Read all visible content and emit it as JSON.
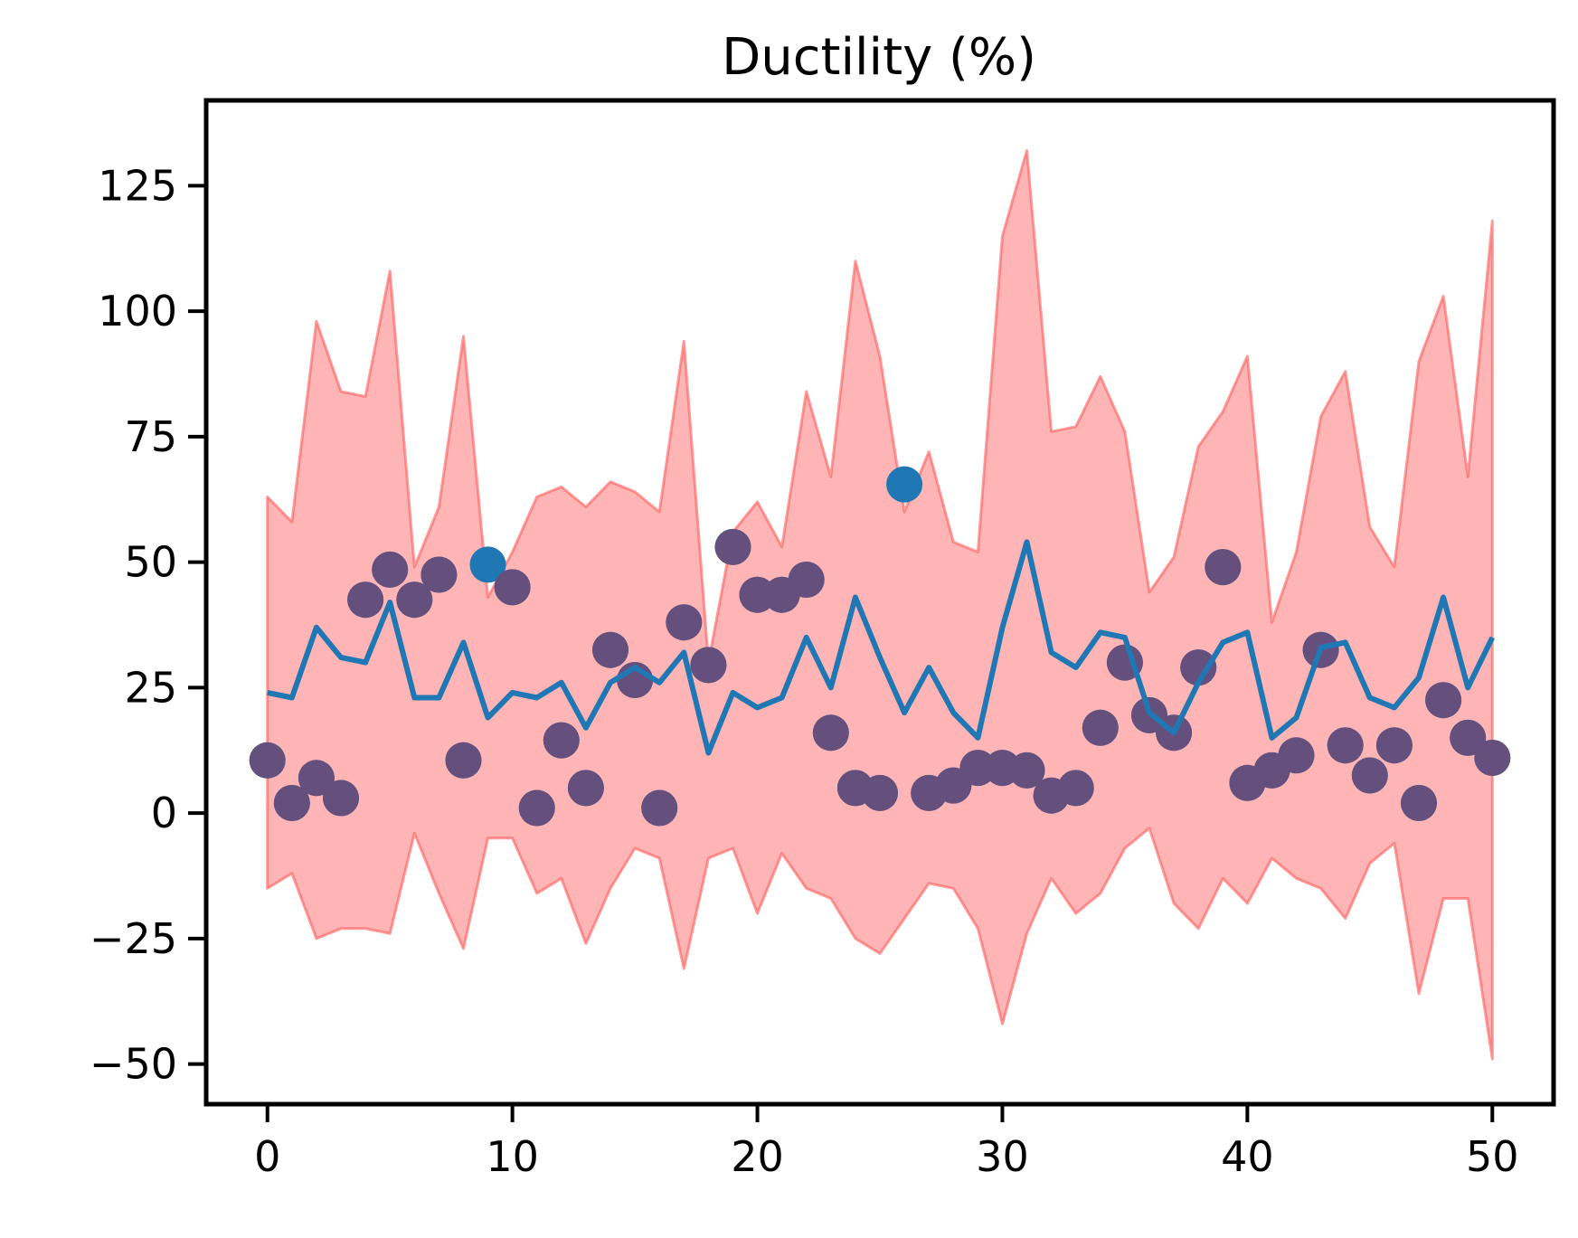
{
  "chart_data": {
    "type": "line",
    "title": "Ductility (%)",
    "xlabel": "",
    "ylabel": "",
    "xlim": [
      -2.5,
      52.5
    ],
    "ylim": [
      -58,
      142
    ],
    "xticks": [
      0,
      10,
      20,
      30,
      40,
      50
    ],
    "yticks": [
      -50,
      -25,
      0,
      25,
      50,
      75,
      100,
      125
    ],
    "xtick_labels": [
      "0",
      "10",
      "20",
      "30",
      "40",
      "50"
    ],
    "ytick_labels": [
      "−50",
      "−25",
      "0",
      "25",
      "50",
      "75",
      "100",
      "125"
    ],
    "grid": false,
    "legend": "none",
    "colors": {
      "band": "#ff5a5a",
      "prediction": "#1f77b4",
      "observed": "#1f77b4",
      "overlap": "#654f7c"
    },
    "x": [
      0,
      1,
      2,
      3,
      4,
      5,
      6,
      7,
      8,
      9,
      10,
      11,
      12,
      13,
      14,
      15,
      16,
      17,
      18,
      19,
      20,
      21,
      22,
      23,
      24,
      25,
      26,
      27,
      28,
      29,
      30,
      31,
      32,
      33,
      34,
      35,
      36,
      37,
      38,
      39,
      40,
      41,
      42,
      43,
      44,
      45,
      46,
      47,
      48,
      49,
      50
    ],
    "prediction": [
      24,
      23,
      37,
      31,
      30,
      42,
      23,
      23,
      34,
      19,
      24,
      23,
      26,
      17,
      26,
      29,
      26,
      32,
      12,
      24,
      21,
      23,
      35,
      25,
      43,
      31,
      20,
      29,
      20,
      15,
      37,
      54,
      32,
      29,
      36,
      35,
      20,
      16,
      26,
      34,
      36,
      15,
      19,
      33,
      34,
      23,
      21,
      27,
      43,
      25,
      35
    ],
    "band_upper": [
      63,
      58,
      98,
      84,
      83,
      108,
      49,
      61,
      95,
      43,
      52,
      63,
      65,
      61,
      66,
      64,
      60,
      94,
      30,
      56,
      62,
      53,
      84,
      67,
      110,
      91,
      60,
      72,
      54,
      52,
      115,
      132,
      76,
      77,
      87,
      76,
      44,
      51,
      73,
      80,
      91,
      38,
      52,
      79,
      88,
      57,
      49,
      90,
      103,
      67,
      118
    ],
    "band_lower": [
      -15,
      -12,
      -25,
      -23,
      -23,
      -24,
      -4,
      -16,
      -27,
      -5,
      -5,
      -16,
      -13,
      -26,
      -15,
      -7,
      -9,
      -31,
      -9,
      -7,
      -20,
      -8,
      -15,
      -17,
      -25,
      -28,
      -21,
      -14,
      -15,
      -23,
      -42,
      -24,
      -13,
      -20,
      -16,
      -7,
      -3,
      -18,
      -23,
      -13,
      -18,
      -9,
      -13,
      -15,
      -21,
      -10,
      -6,
      -36,
      -17,
      -17,
      -49
    ],
    "observed": [
      10.5,
      2,
      7,
      3,
      42.5,
      48.5,
      42.5,
      47.5,
      10.5,
      49.5,
      45,
      1,
      14.5,
      5,
      32.5,
      26.5,
      1,
      38,
      29.5,
      53,
      43.5,
      43.5,
      46.5,
      16,
      5,
      4,
      65.5,
      4,
      5.5,
      9,
      9,
      8.5,
      3.5,
      5,
      17,
      30,
      19.5,
      16,
      29,
      49,
      6,
      8.5,
      11.5,
      32.5,
      13.5,
      7.5,
      13.5,
      2,
      22.5,
      15,
      11
    ]
  }
}
